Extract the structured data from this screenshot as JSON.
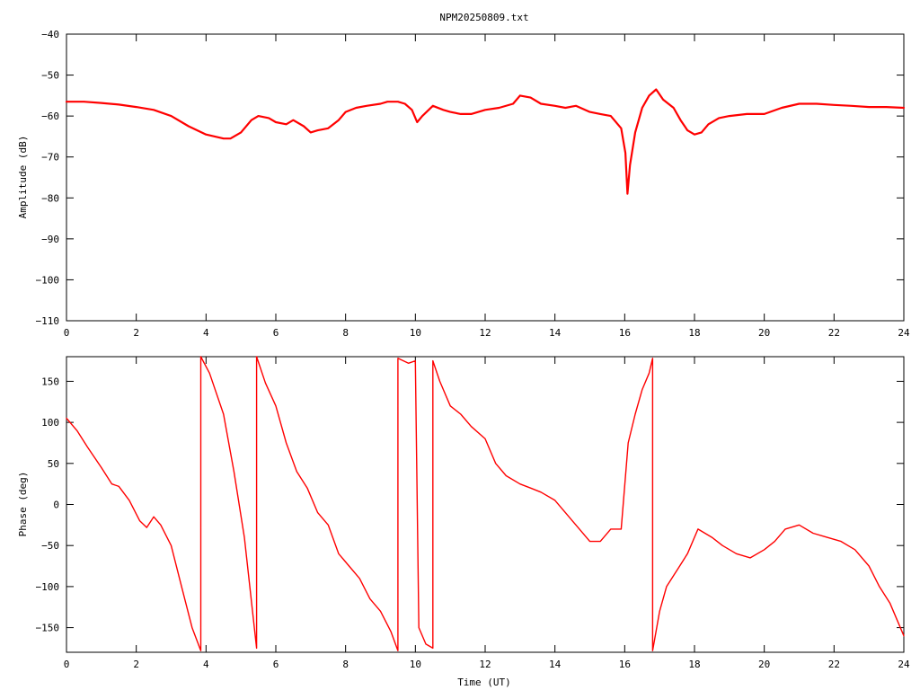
{
  "chart_data": [
    {
      "type": "line",
      "title": "NPM20250809.txt",
      "xlabel": "",
      "ylabel": "Amplitude (dB)",
      "xlim": [
        0,
        24
      ],
      "ylim": [
        -110,
        -40
      ],
      "xticks": [
        0,
        2,
        4,
        6,
        8,
        10,
        12,
        14,
        16,
        18,
        20,
        22,
        24
      ],
      "yticks": [
        -110,
        -100,
        -90,
        -80,
        -70,
        -60,
        -50,
        -40
      ],
      "grid": false,
      "color": "#ff0000",
      "series": [
        {
          "x": [
            0,
            0.5,
            1,
            1.5,
            2,
            2.5,
            3,
            3.5,
            4,
            4.5,
            4.7,
            5,
            5.3,
            5.5,
            5.8,
            6,
            6.3,
            6.5,
            6.8,
            7,
            7.2,
            7.5,
            7.8,
            8,
            8.3,
            8.6,
            9,
            9.2,
            9.5,
            9.7,
            9.9,
            10.05,
            10.2,
            10.5,
            10.8,
            11,
            11.3,
            11.6,
            12,
            12.4,
            12.8,
            13,
            13.3,
            13.6,
            14,
            14.3,
            14.6,
            15,
            15.3,
            15.6,
            15.9,
            16.02,
            16.08,
            16.15,
            16.3,
            16.5,
            16.7,
            16.9,
            17.1,
            17.4,
            17.6,
            17.8,
            18,
            18.2,
            18.4,
            18.7,
            19,
            19.5,
            20,
            20.5,
            21,
            21.5,
            22,
            22.5,
            23,
            23.5,
            24
          ],
          "y": [
            -56.5,
            -56.5,
            -56.8,
            -57.2,
            -57.8,
            -58.5,
            -60,
            -62.5,
            -64.5,
            -65.5,
            -65.5,
            -64,
            -61,
            -60,
            -60.5,
            -61.5,
            -62,
            -61,
            -62.5,
            -64,
            -63.5,
            -63,
            -61,
            -59,
            -58,
            -57.5,
            -57,
            -56.5,
            -56.5,
            -57,
            -58.5,
            -61.5,
            -60,
            -57.5,
            -58.5,
            -59,
            -59.5,
            -59.5,
            -58.5,
            -58,
            -57,
            -55,
            -55.5,
            -57,
            -57.5,
            -58,
            -57.5,
            -59,
            -59.5,
            -60,
            -63,
            -69,
            -79,
            -72,
            -64,
            -58,
            -55,
            -53.5,
            -56,
            -58,
            -61,
            -63.5,
            -64.5,
            -64,
            -62,
            -60.5,
            -60,
            -59.5,
            -59.5,
            -58,
            -57,
            -57,
            -57.3,
            -57.5,
            -57.8,
            -57.8,
            -58
          ]
        }
      ]
    },
    {
      "type": "line",
      "title": "",
      "xlabel": "Time (UT)",
      "ylabel": "Phase (deg)",
      "xlim": [
        0,
        24
      ],
      "ylim": [
        -180,
        180
      ],
      "xticks": [
        0,
        2,
        4,
        6,
        8,
        10,
        12,
        14,
        16,
        18,
        20,
        22,
        24
      ],
      "yticks": [
        -150,
        -100,
        -50,
        0,
        50,
        100,
        150
      ],
      "grid": false,
      "color": "#ff0000",
      "series": [
        {
          "x": [
            0,
            0.3,
            0.6,
            1,
            1.3,
            1.5,
            1.8,
            2.1,
            2.3,
            2.5,
            2.7,
            3,
            3.3,
            3.6,
            3.85,
            3.85,
            4.1,
            4.5,
            4.8,
            5.1,
            5.45,
            5.45,
            5.7,
            6,
            6.3,
            6.6,
            6.9,
            7.2,
            7.5,
            7.8,
            8.1,
            8.4,
            8.7,
            9,
            9.3,
            9.5,
            9.5,
            9.8,
            10,
            10.1,
            10.3,
            10.5,
            10.5,
            10.7,
            11,
            11.3,
            11.6,
            12,
            12.3,
            12.6,
            13,
            13.3,
            13.6,
            14,
            14.3,
            14.6,
            15,
            15.3,
            15.6,
            15.9,
            16.1,
            16.3,
            16.5,
            16.7,
            16.8,
            16.8,
            17,
            17.2,
            17.5,
            17.8,
            18.1,
            18.5,
            18.8,
            19.2,
            19.6,
            20,
            20.3,
            20.6,
            21,
            21.4,
            21.8,
            22.2,
            22.6,
            23,
            23.3,
            23.6,
            24
          ],
          "y": [
            105,
            90,
            70,
            45,
            25,
            22,
            5,
            -20,
            -28,
            -15,
            -25,
            -50,
            -100,
            -150,
            -178,
            180,
            160,
            110,
            40,
            -40,
            -175,
            180,
            148,
            120,
            75,
            40,
            20,
            -10,
            -25,
            -60,
            -75,
            -90,
            -115,
            -130,
            -155,
            -178,
            178,
            172,
            175,
            -150,
            -170,
            -175,
            175,
            150,
            120,
            110,
            95,
            80,
            50,
            35,
            25,
            20,
            15,
            5,
            -10,
            -25,
            -45,
            -45,
            -30,
            -30,
            75,
            110,
            140,
            160,
            178,
            -178,
            -130,
            -100,
            -80,
            -60,
            -30,
            -40,
            -50,
            -60,
            -65,
            -55,
            -45,
            -30,
            -25,
            -35,
            -40,
            -45,
            -55,
            -75,
            -100,
            -120,
            -160
          ]
        }
      ]
    }
  ]
}
